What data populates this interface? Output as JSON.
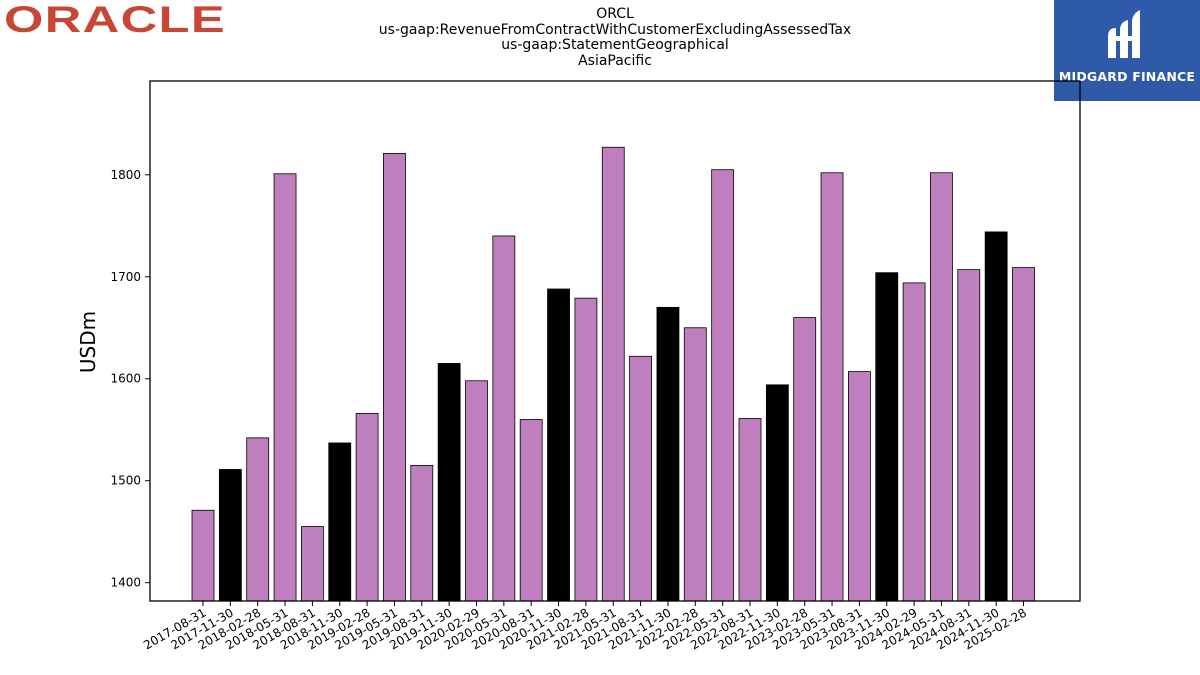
{
  "brand_left": {
    "text": "ORACLE",
    "color": "#c74634"
  },
  "brand_right": {
    "text": "MIDGARD FINANCE",
    "bg": "#2f5aa9"
  },
  "chart_data": {
    "type": "bar",
    "title_lines": [
      "ORCL",
      "us-gaap:RevenueFromContractWithCustomerExcludingAssessedTax",
      "us-gaap:StatementGeographical",
      "AsiaPacific"
    ],
    "xlabel": "",
    "ylabel": "USDm",
    "ylim": [
      1382,
      1892
    ],
    "yticks": [
      1400,
      1500,
      1600,
      1700,
      1800
    ],
    "grid": false,
    "legend": "none",
    "colors": {
      "default": "#bf7fbf",
      "highlight": "#000000"
    },
    "categories": [
      "2017-08-31",
      "2017-11-30",
      "2018-02-28",
      "2018-05-31",
      "2018-08-31",
      "2018-11-30",
      "2019-02-28",
      "2019-05-31",
      "2019-08-31",
      "2019-11-30",
      "2020-02-29",
      "2020-05-31",
      "2020-08-31",
      "2020-11-30",
      "2021-02-28",
      "2021-05-31",
      "2021-08-31",
      "2021-11-30",
      "2022-02-28",
      "2022-05-31",
      "2022-08-31",
      "2022-11-30",
      "2023-02-28",
      "2023-05-31",
      "2023-08-31",
      "2023-11-30",
      "2024-02-29",
      "2024-05-31",
      "2024-08-31",
      "2024-11-30",
      "2025-02-28"
    ],
    "values": [
      1471,
      1511,
      1542,
      1801,
      1455,
      1537,
      1566,
      1821,
      1515,
      1615,
      1598,
      1740,
      1560,
      1688,
      1679,
      1827,
      1622,
      1670,
      1650,
      1805,
      1561,
      1594,
      1660,
      1802,
      1607,
      1704,
      1694,
      1802,
      1707,
      1744,
      1709
    ],
    "highlight": [
      false,
      true,
      false,
      false,
      false,
      true,
      false,
      false,
      false,
      true,
      false,
      false,
      false,
      true,
      false,
      false,
      false,
      true,
      false,
      false,
      false,
      true,
      false,
      false,
      false,
      true,
      false,
      false,
      false,
      true,
      false
    ]
  }
}
